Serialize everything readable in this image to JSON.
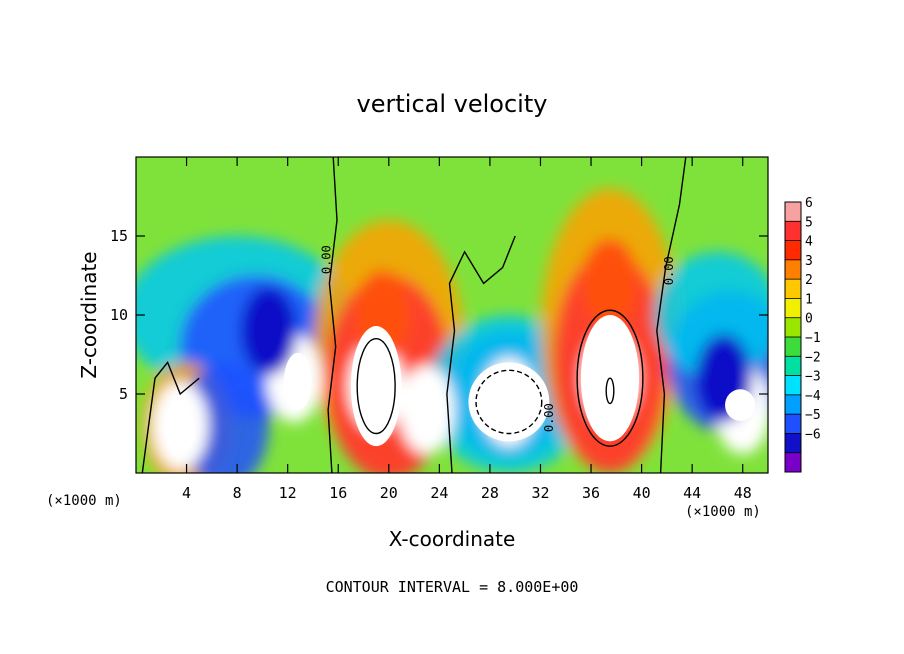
{
  "chart_data": {
    "type": "heatmap",
    "title": "vertical velocity",
    "xlabel": "X-coordinate",
    "ylabel": "Z-coordinate",
    "x_unit_left": "(×1000 m)",
    "x_unit_right": "(×1000 m)",
    "footer": "CONTOUR INTERVAL = 8.000E+00",
    "contour_label": "0.00",
    "xlim": [
      0,
      50
    ],
    "ylim": [
      0,
      20
    ],
    "x_ticks": [
      4,
      8,
      12,
      16,
      20,
      24,
      28,
      32,
      36,
      40,
      44,
      48
    ],
    "y_ticks": [
      5,
      10,
      15
    ],
    "colorbar": {
      "ticks": [
        6,
        5,
        4,
        3,
        2,
        1,
        0,
        -1,
        -2,
        -3,
        -4,
        -5,
        -6
      ],
      "tick_labels": [
        "6",
        "5",
        "4",
        "3",
        "2",
        "1",
        "0",
        "−1",
        "−2",
        "−3",
        "−4",
        "−5",
        "−6"
      ],
      "colors": [
        "#f7a1a1",
        "#ff3030",
        "#ff2a00",
        "#ff8000",
        "#ffc800",
        "#f0f000",
        "#9be600",
        "#3cdc3c",
        "#00e0a0",
        "#00e0ff",
        "#00a0ff",
        "#1e50ff",
        "#1010c8",
        "#7800c8"
      ]
    },
    "cells": [
      {
        "x": 3.5,
        "z": 3.0,
        "w": 9,
        "note": "updraft"
      },
      {
        "x": 12.5,
        "z": 6.0,
        "w": 9,
        "note": "updraft"
      },
      {
        "x": 10.5,
        "z": 9.0,
        "w": -5
      },
      {
        "x": 19.0,
        "z": 5.5,
        "w": 9,
        "note": "updraft"
      },
      {
        "x": 23.0,
        "z": 4.0,
        "w": 8
      },
      {
        "x": 19.5,
        "z": 10.0,
        "w": 4.5
      },
      {
        "x": 29.5,
        "z": 4.5,
        "w": 9,
        "note": "downdraft core (white)"
      },
      {
        "x": 37.5,
        "z": 6.0,
        "w": 9,
        "note": "updraft"
      },
      {
        "x": 37.5,
        "z": 12.0,
        "w": 4.5
      },
      {
        "x": 48.0,
        "z": 4.0,
        "w": 9
      },
      {
        "x": 46.5,
        "z": 6.0,
        "w": -5
      }
    ],
    "background_value": 0.8
  }
}
